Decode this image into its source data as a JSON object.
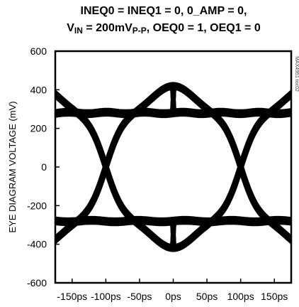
{
  "title": {
    "line1": "INEQ0 = INEQ1 = 0, 0_AMP = 0,",
    "line2_vin": "V",
    "line2_vin_sub": "IN",
    "line2_mid": " = 200mV",
    "line2_pp_sub": "P-P",
    "line2_rest": ", OEQ0 = 1, OEQ1 = 0"
  },
  "figure_code": "MAX4951 toc02",
  "chart_data": {
    "type": "line",
    "title": "INEQ0 = INEQ1 = 0, 0_AMP = 0, VIN = 200mVP-P, OEQ0 = 1, OEQ1 = 0",
    "xlabel": "",
    "ylabel": "EYE DIAGRAM VOLTAGE (mV)",
    "xlim": [
      -175,
      175
    ],
    "ylim": [
      -600,
      600
    ],
    "x_tick_values": [
      -150,
      -100,
      -50,
      0,
      50,
      100,
      150
    ],
    "x_tick_labels": [
      "-150ps",
      "-100ps",
      "-50ps",
      "0ps",
      "50ps",
      "100ps",
      "150ps"
    ],
    "y_tick_values": [
      600,
      400,
      200,
      0,
      -200,
      -400,
      -600
    ],
    "y_tick_labels": [
      "600",
      "400",
      "200",
      "0",
      "-200",
      "-400",
      "-600"
    ],
    "grid": false,
    "eye": {
      "high_level_mv": 280,
      "low_level_mv": -280,
      "overshoot_peak_mv": 420,
      "undershoot_peak_mv": -420,
      "crossing_times_ps": [
        -100,
        100
      ],
      "unit_interval_ps": 200
    }
  }
}
